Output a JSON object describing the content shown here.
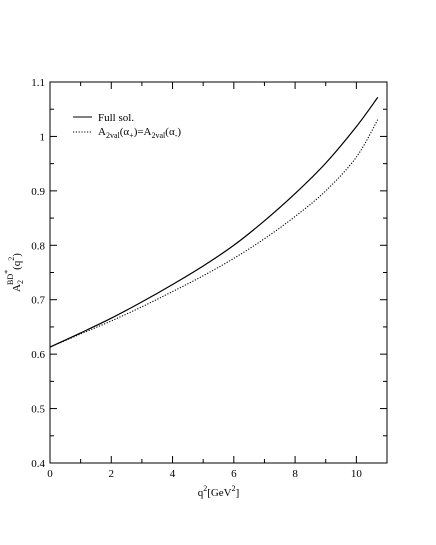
{
  "chart_data": {
    "type": "line",
    "title": "",
    "xlabel": {
      "base": "q",
      "sup": "2",
      "mid": "[GeV",
      "sup2": "2",
      "end": "]"
    },
    "ylabel": {
      "base": "A",
      "sub": "2",
      "sup": "BD",
      "sup_mark": "*",
      "paren_open": "(q",
      "paren_sup": "2",
      "paren_close": ")"
    },
    "xlim": [
      0,
      11
    ],
    "ylim": [
      0.4,
      1.1
    ],
    "xticks": [
      0,
      2,
      4,
      6,
      8,
      10
    ],
    "yticks": [
      0.4,
      0.5,
      0.6,
      0.7,
      0.8,
      0.9,
      1.0,
      1.1
    ],
    "xtick_labels": [
      "0",
      "2",
      "4",
      "6",
      "8",
      "10"
    ],
    "ytick_labels": [
      "0.4",
      "0.5",
      "0.6",
      "0.7",
      "0.8",
      "0.9",
      "1",
      "1.1"
    ],
    "grid": false,
    "legend_position": "top-left",
    "series": [
      {
        "name": "Full sol.",
        "style": "solid",
        "color": "#000000",
        "x": [
          0,
          1,
          2,
          3,
          4,
          5,
          6,
          7,
          8,
          9,
          10,
          10.7
        ],
        "y": [
          0.613,
          0.639,
          0.666,
          0.696,
          0.728,
          0.762,
          0.8,
          0.845,
          0.895,
          0.951,
          1.018,
          1.072
        ]
      },
      {
        "name": "A2val(α+)=A2val(α-)",
        "legend_parts": {
          "a": "A",
          "sub": "2val",
          "open": "(α",
          "sub_plus": "+",
          "mid": ")=A",
          "sub2": "2val",
          "open2": "(α",
          "sub_minus": "-",
          "close": ")"
        },
        "style": "dotted",
        "color": "#000000",
        "x": [
          0,
          1,
          2,
          3,
          4,
          5,
          6,
          7,
          8,
          9,
          10,
          10.7
        ],
        "y": [
          0.613,
          0.637,
          0.661,
          0.687,
          0.715,
          0.744,
          0.776,
          0.812,
          0.853,
          0.9,
          0.962,
          1.031
        ]
      }
    ]
  }
}
